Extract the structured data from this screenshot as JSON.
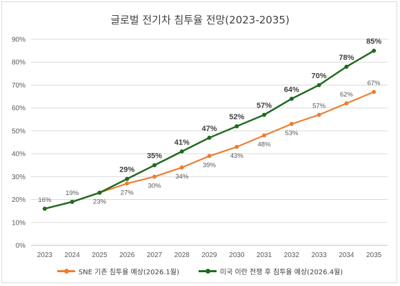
{
  "chart_data": {
    "type": "line",
    "title": "글로벌 전기차 침투율 전망(2023-2035)",
    "x": [
      "2023",
      "2024",
      "2025",
      "2026",
      "2027",
      "2028",
      "2029",
      "2030",
      "2031",
      "2032",
      "2033",
      "2034",
      "2035"
    ],
    "ylim": [
      0,
      90
    ],
    "yticks": [
      "0%",
      "10%",
      "20%",
      "30%",
      "40%",
      "50%",
      "60%",
      "70%",
      "80%",
      "90%"
    ],
    "grid": true,
    "legend_position": "bottom",
    "series": [
      {
        "name": "SNE 기존 침투율 예상(2026.1월)",
        "color": "#ed7d31",
        "values": [
          16,
          19,
          23,
          27,
          30,
          34,
          39,
          43,
          48,
          53,
          57,
          62,
          67
        ]
      },
      {
        "name": "미국 이란 전쟁 후 침투율 예상(2026.4월)",
        "color": "#1e6b1e",
        "values": [
          16,
          19,
          23,
          29,
          35,
          41,
          47,
          52,
          57,
          64,
          70,
          78,
          85
        ]
      }
    ],
    "data_labels": {
      "orange": [
        "",
        "",
        "23%",
        "27%",
        "30%",
        "34%",
        "39%",
        "43%",
        "48%",
        "53%",
        "57%",
        "62%",
        "67%"
      ],
      "green": [
        "16%",
        "19%",
        "",
        "29%",
        "35%",
        "41%",
        "47%",
        "52%",
        "57%",
        "64%",
        "70%",
        "78%",
        "85%"
      ]
    }
  }
}
